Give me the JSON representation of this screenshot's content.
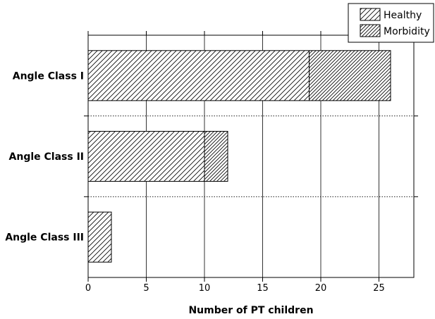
{
  "chart_data": {
    "type": "bar",
    "orientation": "horizontal",
    "stacked": true,
    "categories": [
      "Angle Class I",
      "Angle Class II",
      "Angle Class III"
    ],
    "series": [
      {
        "name": "Healthy",
        "values": [
          19,
          10,
          2
        ],
        "pattern": "hatch-sparse"
      },
      {
        "name": "Morbidity",
        "values": [
          7,
          2,
          0
        ],
        "pattern": "hatch-dense"
      }
    ],
    "xlabel": "Number of PT children",
    "ylabel": "",
    "xlim": [
      0,
      28
    ],
    "xticks": [
      "0",
      "5",
      "10",
      "15",
      "20",
      "25"
    ],
    "grid": "vertical",
    "legend_position": "top-right"
  }
}
